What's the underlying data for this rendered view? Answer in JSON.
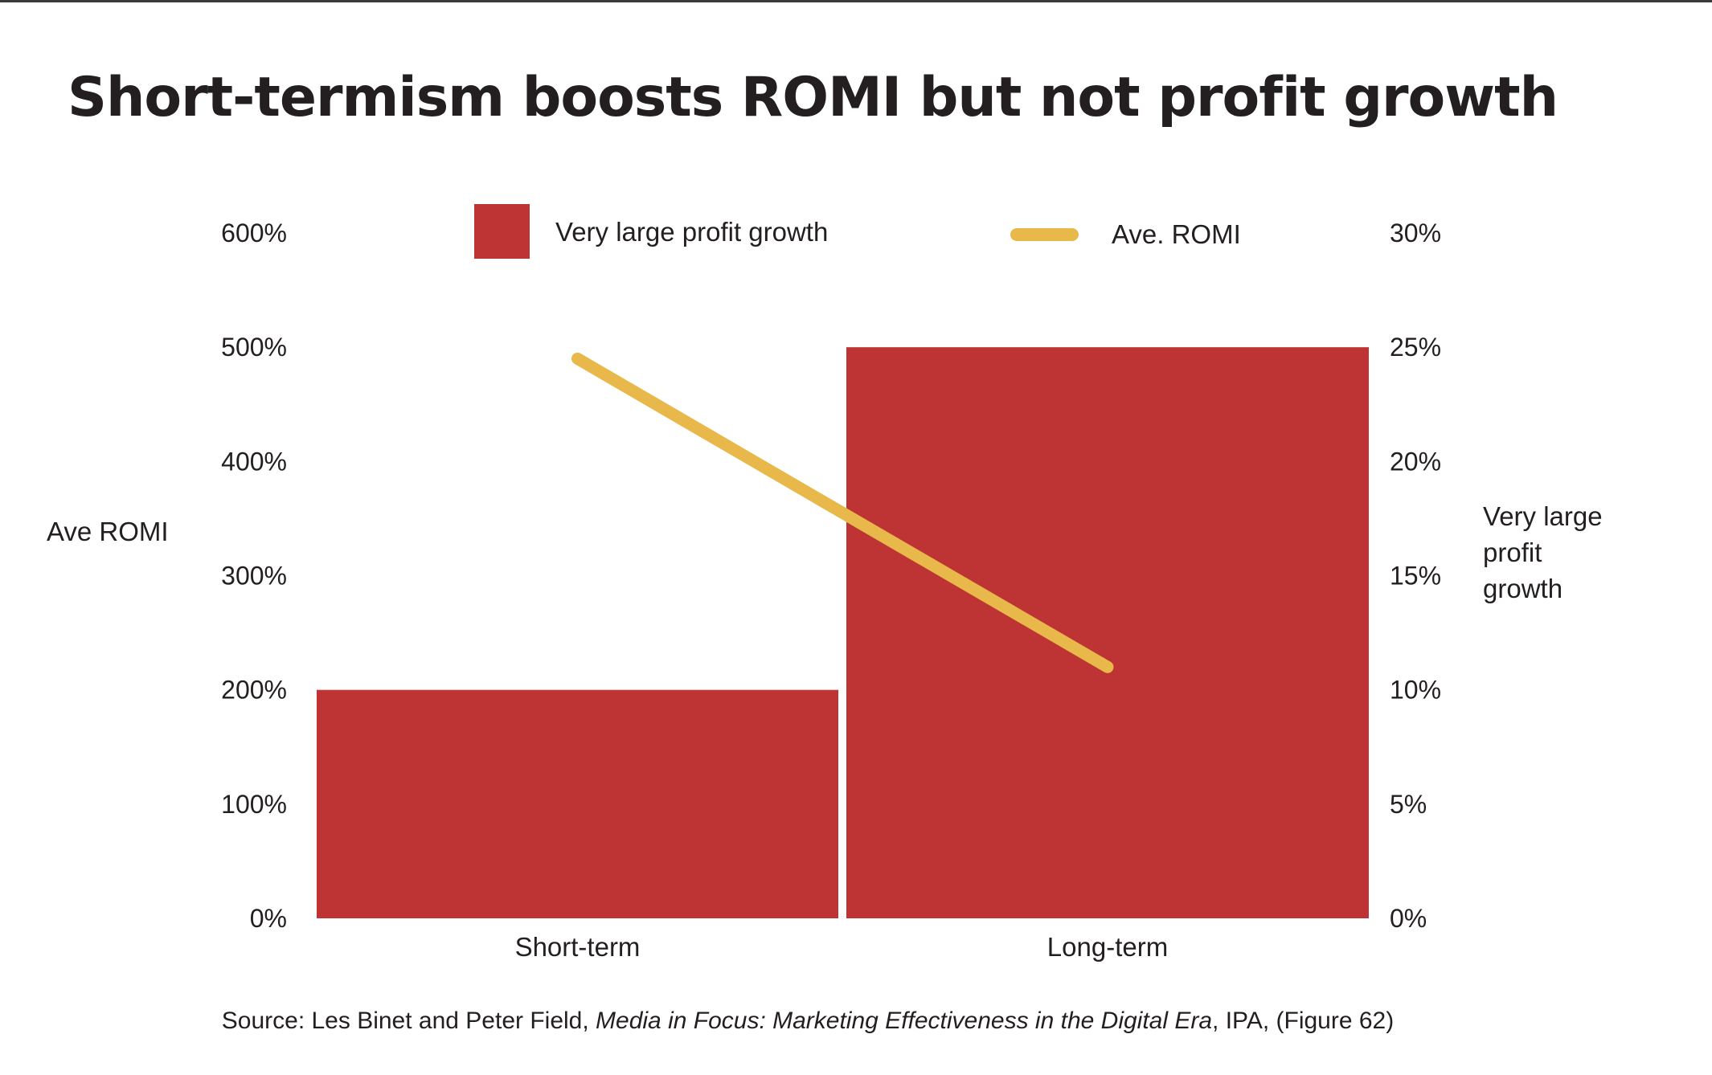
{
  "title": "Short-termism boosts ROMI but not profit growth",
  "source": {
    "prefix": "Source: Les Binet and Peter Field, ",
    "italic": "Media in Focus: Marketing Effectiveness in the Digital Era",
    "suffix": ", IPA, (Figure 62)"
  },
  "chart_data": {
    "type": "bar+line",
    "categories": [
      "Short-term",
      "Long-term"
    ],
    "series": [
      {
        "name": "Very large profit growth",
        "type": "bar",
        "axis": "right",
        "values": [
          10,
          25
        ],
        "color": "#BE3333"
      },
      {
        "name": "Ave. ROMI",
        "type": "line",
        "axis": "left",
        "values": [
          490,
          220
        ],
        "color": "#E8B84A"
      }
    ],
    "left_axis": {
      "label": "Ave ROMI",
      "ylim": [
        0,
        600
      ],
      "ticks": [
        "0%",
        "100%",
        "200%",
        "300%",
        "400%",
        "500%",
        "600%"
      ]
    },
    "right_axis": {
      "label_lines": [
        "Very large",
        "profit",
        "growth"
      ],
      "ylim": [
        0,
        30
      ],
      "ticks": [
        "0%",
        "5%",
        "10%",
        "15%",
        "20%",
        "25%",
        "30%"
      ]
    },
    "legend": {
      "placement": "top",
      "entries": [
        "Very large profit growth",
        "Ave. ROMI"
      ]
    },
    "grid": false
  }
}
